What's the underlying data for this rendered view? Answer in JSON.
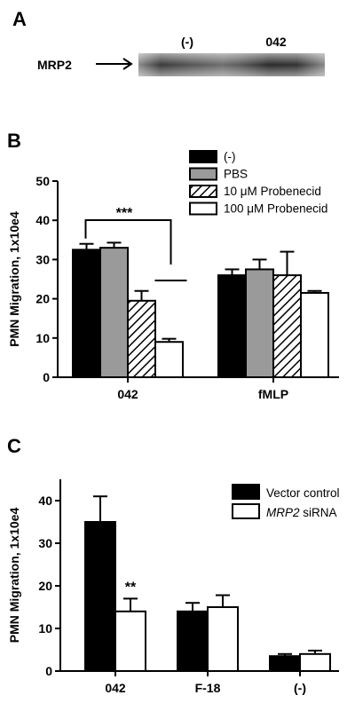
{
  "panel_a": {
    "letter": "A",
    "protein_label": "MRP2",
    "lanes": [
      "(-)",
      "042"
    ]
  },
  "chart_data": [
    {
      "panel": "B",
      "type": "bar",
      "ylabel": "PMN Migration, 1x10e4",
      "ylim": [
        0,
        50
      ],
      "yticks": [
        0,
        10,
        20,
        30,
        40,
        50
      ],
      "categories": [
        "042",
        "fMLP"
      ],
      "series": [
        {
          "name": "(-)",
          "fill": "#000000",
          "pattern": "solid",
          "values": [
            32.5,
            26.0
          ],
          "errors": [
            1.5,
            1.5
          ]
        },
        {
          "name": "PBS",
          "fill": "#9a9a9a",
          "pattern": "solid",
          "values": [
            33.0,
            27.5
          ],
          "errors": [
            1.3,
            2.5
          ]
        },
        {
          "name": "10 μM Probenecid",
          "fill": "#ffffff",
          "pattern": "hatch",
          "values": [
            19.5,
            26.0
          ],
          "errors": [
            2.5,
            6.0
          ]
        },
        {
          "name": "100 μM Probenecid",
          "fill": "#ffffff",
          "pattern": "solid",
          "values": [
            9.0,
            21.5
          ],
          "errors": [
            0.8,
            0.5
          ]
        }
      ],
      "annotations": [
        {
          "text": "***",
          "bracket": [
            "042:(-)",
            "042:100 μM Probenecid"
          ]
        }
      ],
      "legend": "top-right"
    },
    {
      "panel": "C",
      "type": "bar",
      "ylabel": "PMN Migration, 1x10e4",
      "ylim": [
        0,
        45
      ],
      "yticks": [
        0,
        10,
        20,
        30,
        40
      ],
      "categories": [
        "042",
        "F-18",
        "(-)"
      ],
      "series": [
        {
          "name": "Vector control",
          "fill": "#000000",
          "pattern": "solid",
          "values": [
            35.0,
            14.0,
            3.5
          ],
          "errors": [
            6.0,
            2.0,
            0.5
          ]
        },
        {
          "name": "MRP2 siRNA",
          "name_italic": "MRP2",
          "name_rest": " siRNA",
          "fill": "#ffffff",
          "pattern": "solid",
          "values": [
            14.0,
            15.0,
            4.0
          ],
          "errors": [
            3.0,
            2.8,
            0.8
          ]
        }
      ],
      "annotations": [
        {
          "text": "**",
          "above": "042:MRP2 siRNA"
        }
      ],
      "legend": "top-right"
    }
  ],
  "panel_letters": {
    "b": "B",
    "c": "C"
  }
}
